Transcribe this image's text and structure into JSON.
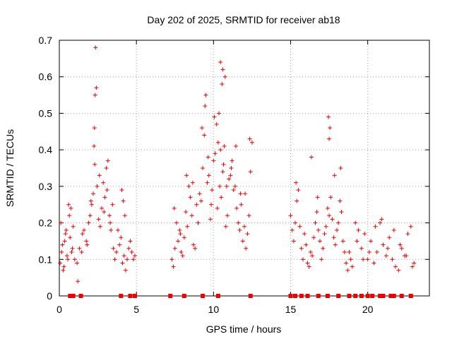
{
  "chart_data": {
    "type": "scatter",
    "title": "Day 202 of 2025, SRMTID for receiver ab18",
    "xlabel": "GPS time / hours",
    "ylabel": "SRMTID / TECUs",
    "xlim": [
      0,
      24
    ],
    "ylim": [
      0,
      0.7
    ],
    "xticks": [
      0,
      5,
      10,
      15,
      20
    ],
    "yticks": [
      0,
      0.1,
      0.2,
      0.3,
      0.4,
      0.5,
      0.6,
      0.7
    ],
    "grid": true,
    "series": [
      {
        "name": "SRMTID",
        "marker": "+",
        "color": "#ee0000",
        "x": [
          0.05,
          0.15,
          0.25,
          0.35,
          0.45,
          0.55,
          0.65,
          0.75,
          0.85,
          0.1,
          0.3,
          0.5,
          0.7,
          0.9,
          0.2,
          0.4,
          0.6,
          0.8,
          1.0,
          1.15,
          1.3,
          1.45,
          1.6,
          1.75,
          1.9,
          2.0,
          2.1,
          2.2,
          2.3,
          2.25,
          2.28,
          2.32,
          2.35,
          2.4,
          2.45,
          2.55,
          2.65,
          2.75,
          2.85,
          2.95,
          3.05,
          3.15,
          3.25,
          3.35,
          3.45,
          1.2,
          1.5,
          1.8,
          2.05,
          2.6,
          2.9,
          3.1,
          3.3,
          3.5,
          3.6,
          3.7,
          3.8,
          3.9,
          4.0,
          4.1,
          4.2,
          4.3,
          4.4,
          4.5,
          4.6,
          4.7,
          4.8,
          4.9,
          4.05,
          4.15,
          4.25,
          7.3,
          7.4,
          7.5,
          7.6,
          7.7,
          7.8,
          7.9,
          8.0,
          8.1,
          8.2,
          8.3,
          8.4,
          8.5,
          8.6,
          8.7,
          8.8,
          8.9,
          9.0,
          7.45,
          7.85,
          8.25,
          8.65,
          9.1,
          9.2,
          9.3,
          9.4,
          9.5,
          9.6,
          9.7,
          9.8,
          9.9,
          10.0,
          10.1,
          10.2,
          10.3,
          10.4,
          10.5,
          10.6,
          10.7,
          10.8,
          10.9,
          11.0,
          9.25,
          9.45,
          9.65,
          9.85,
          10.05,
          10.25,
          10.45,
          10.65,
          10.85,
          10.45,
          10.6,
          10.75,
          10.35,
          10.55,
          11.1,
          11.2,
          11.3,
          11.4,
          11.5,
          11.6,
          11.7,
          11.8,
          11.9,
          12.0,
          12.1,
          12.2,
          12.3,
          12.4,
          12.5,
          11.15,
          11.45,
          11.75,
          12.05,
          12.35,
          15.0,
          15.1,
          15.2,
          15.3,
          15.4,
          15.5,
          15.6,
          15.7,
          15.8,
          15.9,
          16.0,
          16.1,
          16.2,
          16.3,
          16.4,
          16.5,
          16.6,
          16.7,
          16.8,
          16.9,
          17.0,
          17.1,
          17.2,
          17.3,
          17.4,
          17.5,
          17.6,
          17.7,
          17.8,
          17.9,
          18.0,
          18.1,
          18.2,
          18.3,
          18.4,
          18.5,
          18.6,
          18.7,
          18.8,
          18.9,
          19.0,
          17.45,
          17.5,
          17.55,
          16.35,
          15.35,
          16.75,
          17.85,
          18.25,
          19.2,
          19.4,
          19.6,
          19.8,
          20.0,
          20.2,
          20.4,
          20.6,
          20.8,
          21.0,
          21.2,
          21.4,
          21.6,
          21.8,
          22.0,
          22.2,
          22.4,
          22.6,
          22.8,
          23.0,
          19.3,
          19.7,
          20.1,
          20.5,
          20.9,
          21.3,
          21.7,
          22.1,
          22.5,
          22.9
        ],
        "y": [
          0.09,
          0.12,
          0.07,
          0.15,
          0.18,
          0.1,
          0.22,
          0.24,
          0.13,
          0.2,
          0.08,
          0.11,
          0.16,
          0.19,
          0.14,
          0.17,
          0.25,
          0.12,
          0.1,
          0.09,
          0.13,
          0.12,
          0.18,
          0.15,
          0.2,
          0.22,
          0.25,
          0.28,
          0.36,
          0.41,
          0.46,
          0.55,
          0.68,
          0.57,
          0.3,
          0.21,
          0.19,
          0.24,
          0.31,
          0.27,
          0.35,
          0.37,
          0.22,
          0.18,
          0.25,
          0.04,
          0.17,
          0.14,
          0.26,
          0.33,
          0.23,
          0.29,
          0.2,
          0.13,
          0.1,
          0.12,
          0.18,
          0.14,
          0.16,
          0.09,
          0.11,
          0.07,
          0.1,
          0.13,
          0.15,
          0.12,
          0.1,
          0.11,
          0.29,
          0.26,
          0.22,
          0.1,
          0.08,
          0.13,
          0.2,
          0.15,
          0.18,
          0.12,
          0.11,
          0.16,
          0.23,
          0.19,
          0.3,
          0.27,
          0.22,
          0.14,
          0.13,
          0.25,
          0.2,
          0.24,
          0.17,
          0.33,
          0.31,
          0.28,
          0.26,
          0.35,
          0.44,
          0.55,
          0.31,
          0.33,
          0.21,
          0.29,
          0.37,
          0.39,
          0.47,
          0.42,
          0.3,
          0.27,
          0.34,
          0.41,
          0.19,
          0.22,
          0.32,
          0.46,
          0.52,
          0.38,
          0.25,
          0.49,
          0.24,
          0.4,
          0.36,
          0.3,
          0.64,
          0.62,
          0.6,
          0.5,
          0.58,
          0.33,
          0.37,
          0.29,
          0.3,
          0.24,
          0.2,
          0.18,
          0.25,
          0.15,
          0.19,
          0.13,
          0.17,
          0.22,
          0.34,
          0.42,
          0.35,
          0.41,
          0.28,
          0.28,
          0.43,
          0.22,
          0.18,
          0.15,
          0.2,
          0.26,
          0.29,
          0.19,
          0.13,
          0.1,
          0.17,
          0.14,
          0.09,
          0.08,
          0.12,
          0.11,
          0.16,
          0.2,
          0.23,
          0.18,
          0.15,
          0.1,
          0.13,
          0.17,
          0.19,
          0.24,
          0.22,
          0.27,
          0.21,
          0.16,
          0.14,
          0.18,
          0.2,
          0.26,
          0.23,
          0.15,
          0.12,
          0.09,
          0.07,
          0.12,
          0.1,
          0.08,
          0.49,
          0.43,
          0.46,
          0.38,
          0.31,
          0.27,
          0.33,
          0.35,
          0.2,
          0.18,
          0.13,
          0.17,
          0.1,
          0.15,
          0.09,
          0.12,
          0.2,
          0.14,
          0.11,
          0.16,
          0.1,
          0.08,
          0.07,
          0.13,
          0.11,
          0.17,
          0.19,
          0.09,
          0.15,
          0.1,
          0.12,
          0.19,
          0.21,
          0.13,
          0.18,
          0.14,
          0.11,
          0.08
        ],
        "zero_marker_x": [
          0.7,
          0.9,
          1.4,
          4.0,
          4.6,
          4.9,
          7.2,
          8.1,
          9.3,
          10.3,
          12.4,
          15.0,
          15.3,
          15.7,
          16.1,
          16.8,
          17.4,
          18.1,
          18.8,
          19.2,
          19.6,
          20.0,
          20.3,
          20.8,
          21.0,
          21.5,
          21.7,
          22.2,
          22.8
        ]
      }
    ]
  }
}
